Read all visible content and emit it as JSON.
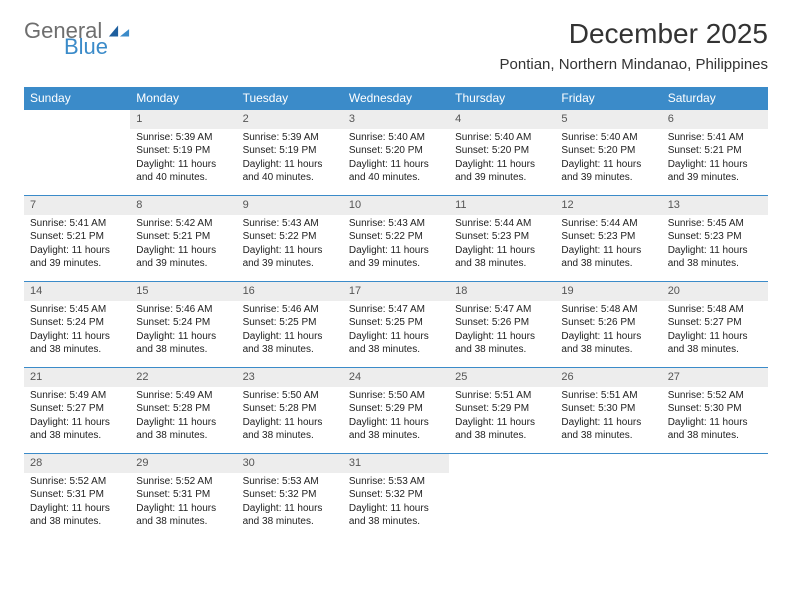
{
  "brand": {
    "part1": "General",
    "part2": "Blue",
    "gray": "#6e6e6e",
    "blue": "#3b8bc9"
  },
  "title": "December 2025",
  "location": "Pontian, Northern Mindanao, Philippines",
  "colors": {
    "header_bg": "#3b8bc9",
    "header_fg": "#ffffff",
    "daynum_bg": "#ededed",
    "daynum_fg": "#555555",
    "rule": "#3b8bc9",
    "text": "#222222"
  },
  "day_headers": [
    "Sunday",
    "Monday",
    "Tuesday",
    "Wednesday",
    "Thursday",
    "Friday",
    "Saturday"
  ],
  "weeks": [
    [
      {
        "n": "",
        "sunrise": "",
        "sunset": "",
        "daylight": ""
      },
      {
        "n": "1",
        "sunrise": "Sunrise: 5:39 AM",
        "sunset": "Sunset: 5:19 PM",
        "daylight": "Daylight: 11 hours and 40 minutes."
      },
      {
        "n": "2",
        "sunrise": "Sunrise: 5:39 AM",
        "sunset": "Sunset: 5:19 PM",
        "daylight": "Daylight: 11 hours and 40 minutes."
      },
      {
        "n": "3",
        "sunrise": "Sunrise: 5:40 AM",
        "sunset": "Sunset: 5:20 PM",
        "daylight": "Daylight: 11 hours and 40 minutes."
      },
      {
        "n": "4",
        "sunrise": "Sunrise: 5:40 AM",
        "sunset": "Sunset: 5:20 PM",
        "daylight": "Daylight: 11 hours and 39 minutes."
      },
      {
        "n": "5",
        "sunrise": "Sunrise: 5:40 AM",
        "sunset": "Sunset: 5:20 PM",
        "daylight": "Daylight: 11 hours and 39 minutes."
      },
      {
        "n": "6",
        "sunrise": "Sunrise: 5:41 AM",
        "sunset": "Sunset: 5:21 PM",
        "daylight": "Daylight: 11 hours and 39 minutes."
      }
    ],
    [
      {
        "n": "7",
        "sunrise": "Sunrise: 5:41 AM",
        "sunset": "Sunset: 5:21 PM",
        "daylight": "Daylight: 11 hours and 39 minutes."
      },
      {
        "n": "8",
        "sunrise": "Sunrise: 5:42 AM",
        "sunset": "Sunset: 5:21 PM",
        "daylight": "Daylight: 11 hours and 39 minutes."
      },
      {
        "n": "9",
        "sunrise": "Sunrise: 5:43 AM",
        "sunset": "Sunset: 5:22 PM",
        "daylight": "Daylight: 11 hours and 39 minutes."
      },
      {
        "n": "10",
        "sunrise": "Sunrise: 5:43 AM",
        "sunset": "Sunset: 5:22 PM",
        "daylight": "Daylight: 11 hours and 39 minutes."
      },
      {
        "n": "11",
        "sunrise": "Sunrise: 5:44 AM",
        "sunset": "Sunset: 5:23 PM",
        "daylight": "Daylight: 11 hours and 38 minutes."
      },
      {
        "n": "12",
        "sunrise": "Sunrise: 5:44 AM",
        "sunset": "Sunset: 5:23 PM",
        "daylight": "Daylight: 11 hours and 38 minutes."
      },
      {
        "n": "13",
        "sunrise": "Sunrise: 5:45 AM",
        "sunset": "Sunset: 5:23 PM",
        "daylight": "Daylight: 11 hours and 38 minutes."
      }
    ],
    [
      {
        "n": "14",
        "sunrise": "Sunrise: 5:45 AM",
        "sunset": "Sunset: 5:24 PM",
        "daylight": "Daylight: 11 hours and 38 minutes."
      },
      {
        "n": "15",
        "sunrise": "Sunrise: 5:46 AM",
        "sunset": "Sunset: 5:24 PM",
        "daylight": "Daylight: 11 hours and 38 minutes."
      },
      {
        "n": "16",
        "sunrise": "Sunrise: 5:46 AM",
        "sunset": "Sunset: 5:25 PM",
        "daylight": "Daylight: 11 hours and 38 minutes."
      },
      {
        "n": "17",
        "sunrise": "Sunrise: 5:47 AM",
        "sunset": "Sunset: 5:25 PM",
        "daylight": "Daylight: 11 hours and 38 minutes."
      },
      {
        "n": "18",
        "sunrise": "Sunrise: 5:47 AM",
        "sunset": "Sunset: 5:26 PM",
        "daylight": "Daylight: 11 hours and 38 minutes."
      },
      {
        "n": "19",
        "sunrise": "Sunrise: 5:48 AM",
        "sunset": "Sunset: 5:26 PM",
        "daylight": "Daylight: 11 hours and 38 minutes."
      },
      {
        "n": "20",
        "sunrise": "Sunrise: 5:48 AM",
        "sunset": "Sunset: 5:27 PM",
        "daylight": "Daylight: 11 hours and 38 minutes."
      }
    ],
    [
      {
        "n": "21",
        "sunrise": "Sunrise: 5:49 AM",
        "sunset": "Sunset: 5:27 PM",
        "daylight": "Daylight: 11 hours and 38 minutes."
      },
      {
        "n": "22",
        "sunrise": "Sunrise: 5:49 AM",
        "sunset": "Sunset: 5:28 PM",
        "daylight": "Daylight: 11 hours and 38 minutes."
      },
      {
        "n": "23",
        "sunrise": "Sunrise: 5:50 AM",
        "sunset": "Sunset: 5:28 PM",
        "daylight": "Daylight: 11 hours and 38 minutes."
      },
      {
        "n": "24",
        "sunrise": "Sunrise: 5:50 AM",
        "sunset": "Sunset: 5:29 PM",
        "daylight": "Daylight: 11 hours and 38 minutes."
      },
      {
        "n": "25",
        "sunrise": "Sunrise: 5:51 AM",
        "sunset": "Sunset: 5:29 PM",
        "daylight": "Daylight: 11 hours and 38 minutes."
      },
      {
        "n": "26",
        "sunrise": "Sunrise: 5:51 AM",
        "sunset": "Sunset: 5:30 PM",
        "daylight": "Daylight: 11 hours and 38 minutes."
      },
      {
        "n": "27",
        "sunrise": "Sunrise: 5:52 AM",
        "sunset": "Sunset: 5:30 PM",
        "daylight": "Daylight: 11 hours and 38 minutes."
      }
    ],
    [
      {
        "n": "28",
        "sunrise": "Sunrise: 5:52 AM",
        "sunset": "Sunset: 5:31 PM",
        "daylight": "Daylight: 11 hours and 38 minutes."
      },
      {
        "n": "29",
        "sunrise": "Sunrise: 5:52 AM",
        "sunset": "Sunset: 5:31 PM",
        "daylight": "Daylight: 11 hours and 38 minutes."
      },
      {
        "n": "30",
        "sunrise": "Sunrise: 5:53 AM",
        "sunset": "Sunset: 5:32 PM",
        "daylight": "Daylight: 11 hours and 38 minutes."
      },
      {
        "n": "31",
        "sunrise": "Sunrise: 5:53 AM",
        "sunset": "Sunset: 5:32 PM",
        "daylight": "Daylight: 11 hours and 38 minutes."
      },
      {
        "n": "",
        "sunrise": "",
        "sunset": "",
        "daylight": ""
      },
      {
        "n": "",
        "sunrise": "",
        "sunset": "",
        "daylight": ""
      },
      {
        "n": "",
        "sunrise": "",
        "sunset": "",
        "daylight": ""
      }
    ]
  ]
}
